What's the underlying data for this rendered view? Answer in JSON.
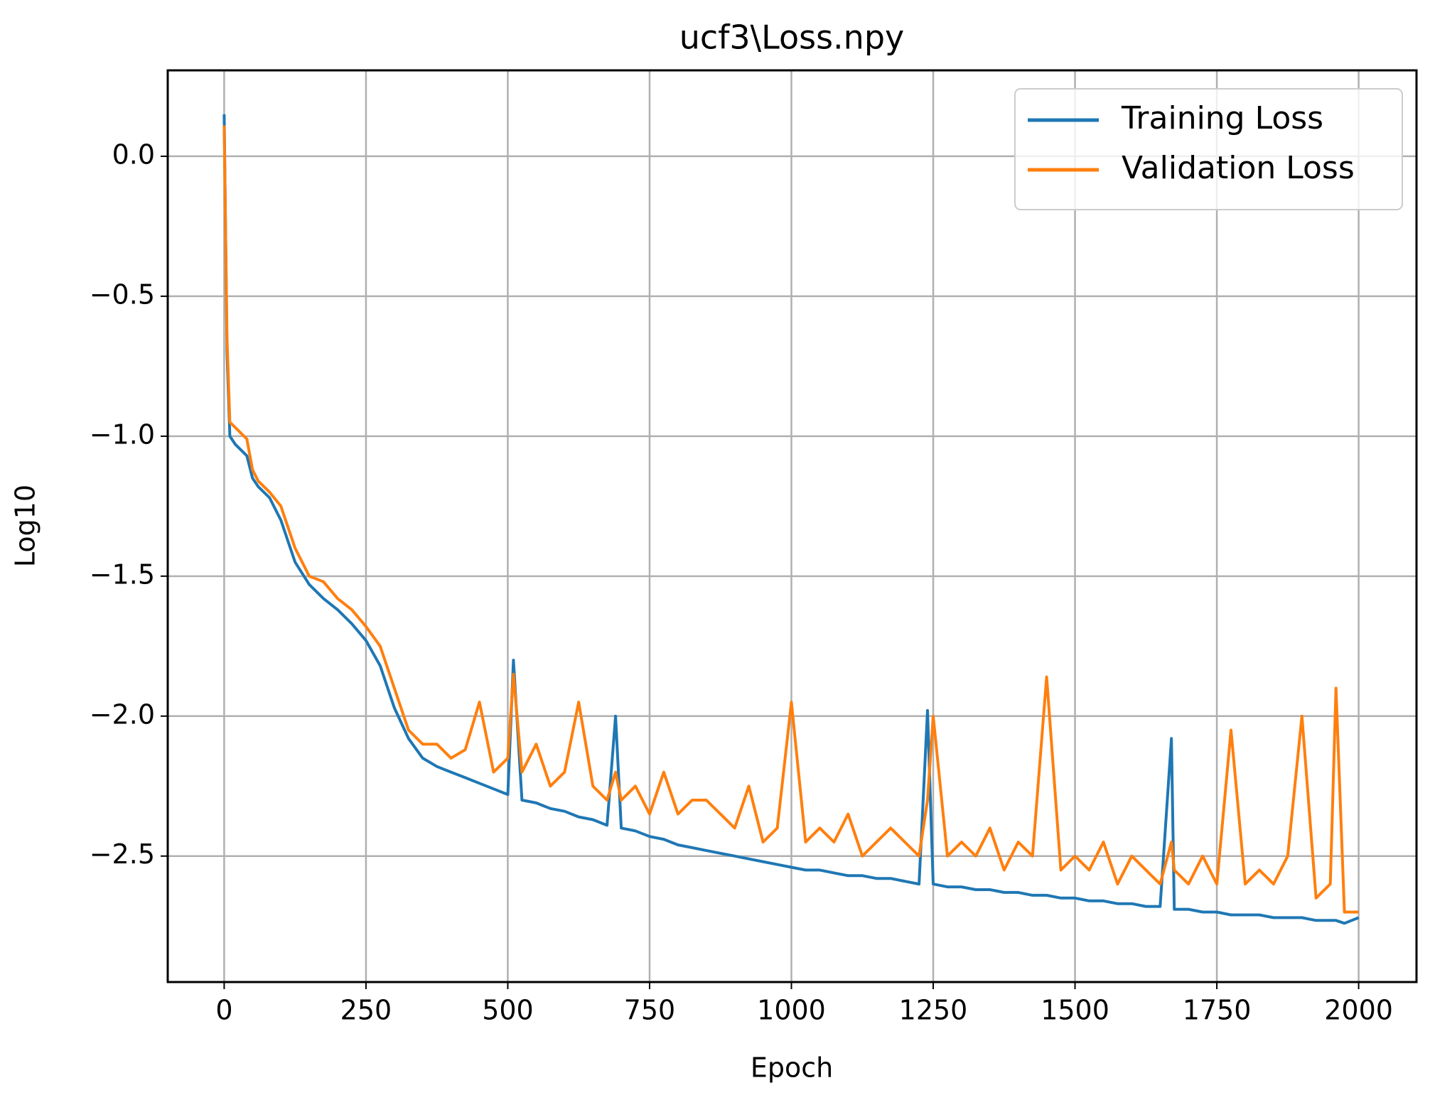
{
  "chart_data": {
    "type": "line",
    "title": "ucf3\\Loss.npy",
    "x_label": "Epoch",
    "y_label": "Log10",
    "x": [
      0,
      5,
      10,
      20,
      30,
      40,
      50,
      60,
      80,
      100,
      125,
      150,
      175,
      200,
      225,
      250,
      275,
      300,
      325,
      350,
      375,
      400,
      425,
      450,
      475,
      500,
      510,
      525,
      550,
      575,
      600,
      625,
      650,
      675,
      690,
      700,
      725,
      750,
      775,
      800,
      825,
      850,
      875,
      900,
      925,
      950,
      975,
      1000,
      1025,
      1050,
      1075,
      1100,
      1125,
      1150,
      1175,
      1200,
      1225,
      1240,
      1250,
      1275,
      1300,
      1325,
      1350,
      1375,
      1400,
      1425,
      1450,
      1475,
      1500,
      1525,
      1550,
      1575,
      1600,
      1625,
      1650,
      1670,
      1675,
      1700,
      1725,
      1750,
      1775,
      1800,
      1825,
      1850,
      1875,
      1900,
      1925,
      1950,
      1960,
      1975,
      2000
    ],
    "series": [
      {
        "name": "Training Loss",
        "color": "#1f77b4",
        "values": [
          0.15,
          -0.7,
          -1.0,
          -1.03,
          -1.05,
          -1.07,
          -1.15,
          -1.18,
          -1.22,
          -1.3,
          -1.45,
          -1.53,
          -1.58,
          -1.62,
          -1.67,
          -1.73,
          -1.82,
          -1.97,
          -2.08,
          -2.15,
          -2.18,
          -2.2,
          -2.22,
          -2.24,
          -2.26,
          -2.28,
          -1.8,
          -2.3,
          -2.31,
          -2.33,
          -2.34,
          -2.36,
          -2.37,
          -2.39,
          -2.0,
          -2.4,
          -2.41,
          -2.43,
          -2.44,
          -2.46,
          -2.47,
          -2.48,
          -2.49,
          -2.5,
          -2.51,
          -2.52,
          -2.53,
          -2.54,
          -2.55,
          -2.55,
          -2.56,
          -2.57,
          -2.57,
          -2.58,
          -2.58,
          -2.59,
          -2.6,
          -1.98,
          -2.6,
          -2.61,
          -2.61,
          -2.62,
          -2.62,
          -2.63,
          -2.63,
          -2.64,
          -2.64,
          -2.65,
          -2.65,
          -2.66,
          -2.66,
          -2.67,
          -2.67,
          -2.68,
          -2.68,
          -2.08,
          -2.69,
          -2.69,
          -2.7,
          -2.7,
          -2.71,
          -2.71,
          -2.71,
          -2.72,
          -2.72,
          -2.72,
          -2.73,
          -2.73,
          -2.73,
          -2.74,
          -2.72
        ]
      },
      {
        "name": "Validation Loss",
        "color": "#ff7f0e",
        "values": [
          0.11,
          -0.65,
          -0.95,
          -0.97,
          -0.99,
          -1.01,
          -1.12,
          -1.16,
          -1.2,
          -1.25,
          -1.4,
          -1.5,
          -1.52,
          -1.58,
          -1.62,
          -1.68,
          -1.75,
          -1.9,
          -2.05,
          -2.1,
          -2.1,
          -2.15,
          -2.12,
          -1.95,
          -2.2,
          -2.15,
          -1.85,
          -2.2,
          -2.1,
          -2.25,
          -2.2,
          -1.95,
          -2.25,
          -2.3,
          -2.2,
          -2.3,
          -2.25,
          -2.35,
          -2.2,
          -2.35,
          -2.3,
          -2.3,
          -2.35,
          -2.4,
          -2.25,
          -2.45,
          -2.4,
          -1.95,
          -2.45,
          -2.4,
          -2.45,
          -2.35,
          -2.5,
          -2.45,
          -2.4,
          -2.45,
          -2.5,
          -2.3,
          -2.0,
          -2.5,
          -2.45,
          -2.5,
          -2.4,
          -2.55,
          -2.45,
          -2.5,
          -1.86,
          -2.55,
          -2.5,
          -2.55,
          -2.45,
          -2.6,
          -2.5,
          -2.55,
          -2.6,
          -2.45,
          -2.55,
          -2.6,
          -2.5,
          -2.6,
          -2.05,
          -2.6,
          -2.55,
          -2.6,
          -2.5,
          -2.0,
          -2.65,
          -2.6,
          -1.9,
          -2.7,
          -2.7
        ]
      }
    ],
    "xlim": [
      -99.5,
      2102
    ],
    "ylim": [
      -2.95,
      0.307
    ],
    "xticks": [
      0,
      250,
      500,
      750,
      1000,
      1250,
      1500,
      1750,
      2000
    ],
    "yticks": [
      {
        "value": 0,
        "label": "0.0"
      },
      {
        "value": -0.5,
        "label": "−0.5"
      },
      {
        "value": -1,
        "label": "−1.0"
      },
      {
        "value": -1.5,
        "label": "−1.5"
      },
      {
        "value": -2,
        "label": "−2.0"
      },
      {
        "value": -2.5,
        "label": "−2.5"
      }
    ],
    "grid": true,
    "legend": "upper right"
  }
}
